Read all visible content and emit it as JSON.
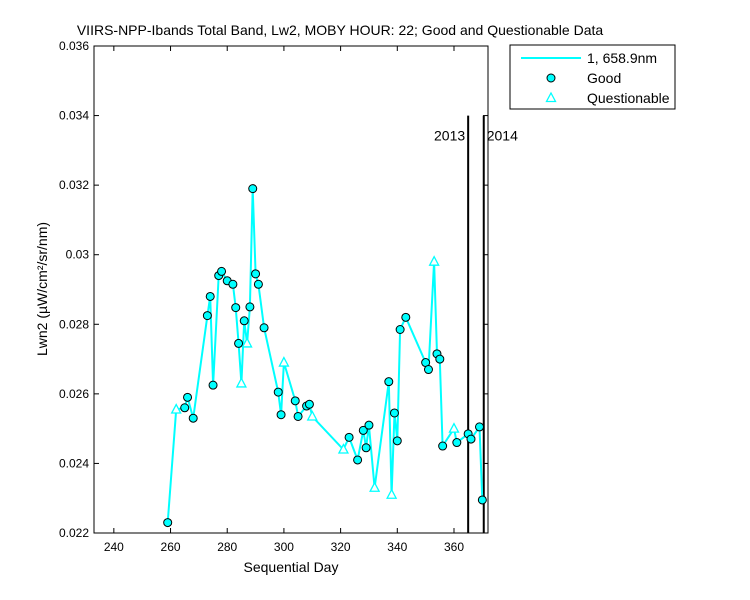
{
  "chart_data": {
    "type": "line",
    "title": "VIIRS-NPP-Ibands Total Band, Lw2, MOBY HOUR: 22;  Good and Questionable Data",
    "xlabel": "Sequential Day",
    "ylabel": "Lwn2 (µW/cm²/sr/nm)",
    "xlim": [
      233,
      372
    ],
    "ylim": [
      0.022,
      0.036
    ],
    "xticks": [
      "240",
      "260",
      "280",
      "300",
      "320",
      "340",
      "360"
    ],
    "yticks": [
      "0.022",
      "0.024",
      "0.026",
      "0.028",
      "0.03",
      "0.032",
      "0.034",
      "0.036"
    ],
    "xtick_values": [
      240,
      260,
      280,
      300,
      320,
      340,
      360
    ],
    "ytick_values": [
      0.022,
      0.024,
      0.026,
      0.028,
      0.03,
      0.032,
      0.034,
      0.036
    ],
    "grid": false,
    "legend_position": "outside-top-right",
    "line": {
      "name": "1, 658.9nm",
      "color": "#00ffff",
      "x": [
        259,
        262,
        265,
        266,
        268,
        273,
        274,
        275,
        277,
        278,
        280,
        282,
        283,
        284,
        285,
        286,
        287,
        288,
        289,
        290,
        291,
        293,
        298,
        299,
        300,
        304,
        305,
        308,
        309,
        310,
        321,
        323,
        326,
        328,
        329,
        330,
        332,
        337,
        338,
        339,
        340,
        341,
        343,
        350,
        351,
        353,
        354,
        355,
        356,
        360,
        361,
        365,
        366,
        369,
        370,
        371
      ],
      "y": [
        0.0223,
        0.02555,
        0.0256,
        0.0259,
        0.0253,
        0.02825,
        0.0288,
        0.02625,
        0.0294,
        0.02952,
        0.02925,
        0.02915,
        0.02848,
        0.02745,
        0.0263,
        0.0281,
        0.02745,
        0.0285,
        0.0319,
        0.02945,
        0.02915,
        0.0279,
        0.02605,
        0.0254,
        0.0269,
        0.0258,
        0.02535,
        0.02565,
        0.0257,
        0.02535,
        0.0244,
        0.02475,
        0.0241,
        0.02495,
        0.02445,
        0.0251,
        0.0233,
        0.02635,
        0.0231,
        0.02545,
        0.02465,
        0.02785,
        0.0282,
        0.0269,
        0.0267,
        0.0298,
        0.02715,
        0.027,
        0.0245,
        0.025,
        0.0246,
        0.02485,
        0.0247,
        0.02505,
        0.02295,
        0.02295
      ]
    },
    "series": [
      {
        "name": "Good",
        "marker": "circle",
        "color": "#00ffff",
        "x": [
          259,
          265,
          266,
          268,
          273,
          274,
          275,
          277,
          278,
          280,
          282,
          283,
          284,
          286,
          288,
          289,
          290,
          291,
          293,
          298,
          299,
          304,
          305,
          308,
          309,
          323,
          326,
          328,
          329,
          330,
          337,
          339,
          340,
          341,
          343,
          350,
          351,
          354,
          355,
          356,
          361,
          365,
          366,
          369,
          370
        ],
        "y": [
          0.0223,
          0.0256,
          0.0259,
          0.0253,
          0.02825,
          0.0288,
          0.02625,
          0.0294,
          0.02952,
          0.02925,
          0.02915,
          0.02848,
          0.02745,
          0.0281,
          0.0285,
          0.0319,
          0.02945,
          0.02915,
          0.0279,
          0.02605,
          0.0254,
          0.0258,
          0.02535,
          0.02565,
          0.0257,
          0.02475,
          0.0241,
          0.02495,
          0.02445,
          0.0251,
          0.02635,
          0.02545,
          0.02465,
          0.02785,
          0.0282,
          0.0269,
          0.0267,
          0.02715,
          0.027,
          0.0245,
          0.0246,
          0.02485,
          0.0247,
          0.02505,
          0.02295
        ]
      },
      {
        "name": "Questionable",
        "marker": "triangle",
        "color": "#00ffff",
        "x": [
          262,
          285,
          287,
          300,
          310,
          321,
          332,
          338,
          353,
          360
        ],
        "y": [
          0.02555,
          0.0263,
          0.02745,
          0.0269,
          0.02535,
          0.0244,
          0.0233,
          0.0231,
          0.0298,
          0.025
        ]
      }
    ],
    "vlines": [
      {
        "x": 365,
        "label": "2013",
        "label_side": "left"
      },
      {
        "x": 370.5,
        "label": "2014",
        "label_side": "right"
      }
    ]
  }
}
